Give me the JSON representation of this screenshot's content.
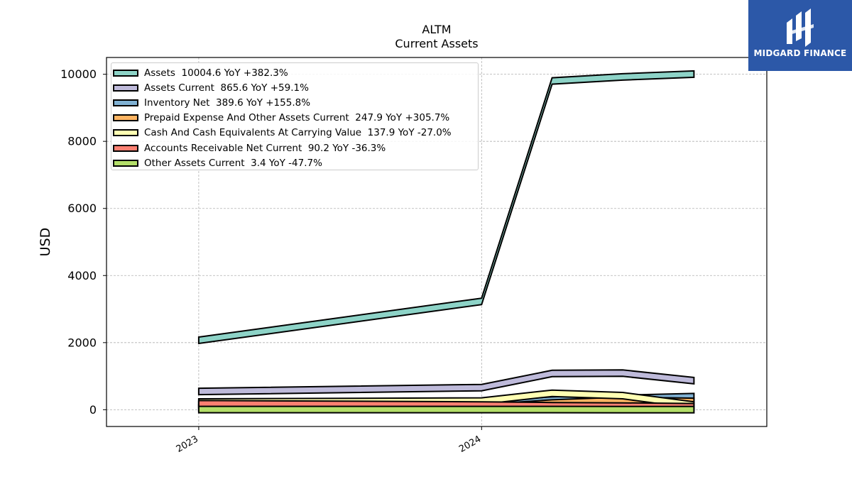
{
  "chart_data": {
    "type": "area",
    "title": "ALTM",
    "subtitle": "Current  Assets",
    "ylabel": "USD",
    "xlabel": "",
    "ylim": [
      -500,
      10500
    ],
    "yticks": [
      0,
      2000,
      4000,
      6000,
      8000,
      10000
    ],
    "xlim": [
      "2022-09-03",
      "2025-01-02"
    ],
    "x_tick_labels": [
      {
        "date": "2022-12-31",
        "label": "2023"
      },
      {
        "date": "2023-12-31",
        "label": "2024"
      }
    ],
    "x": [
      "2022-12-31",
      "2023-12-31",
      "2024-03-31",
      "2024-06-30",
      "2024-09-30"
    ],
    "grid": true,
    "legend_position": "top-left",
    "series": [
      {
        "name": "Assets",
        "legend": "Assets  10004.6 YoY +382.3%",
        "color": "#8dd3c7",
        "values": [
          2070,
          3230,
          9800,
          9920,
          10004.6
        ]
      },
      {
        "name": "Assets Current",
        "legend": "Assets Current  865.6 YoY +59.1%",
        "color": "#bebada",
        "values": [
          545,
          660,
          1080,
          1090,
          865.6
        ]
      },
      {
        "name": "Inventory Net",
        "legend": "Inventory Net  389.6 YoY +155.8%",
        "color": "#80b1d3",
        "values": [
          140,
          152,
          290,
          340,
          389.6
        ]
      },
      {
        "name": "Prepaid Expense And Other Assets Current",
        "legend": "Prepaid Expense And Other Assets Current  247.9 YoY +305.7%",
        "color": "#fdb462",
        "values": [
          60,
          61,
          200,
          280,
          247.9
        ]
      },
      {
        "name": "Cash And Cash Equivalents At Carrying Value",
        "legend": "Cash And Cash Equivalents At Carrying Value  137.9 YoY -27.0%",
        "color": "#ffffb3",
        "values": [
          230,
          260,
          490,
          420,
          137.9
        ]
      },
      {
        "name": "Accounts Receivable Net Current",
        "legend": "Accounts Receivable Net Current  90.2 YoY -36.3%",
        "color": "#fb8072",
        "values": [
          180,
          142,
          120,
          110,
          90.2
        ]
      },
      {
        "name": "Other Assets Current",
        "legend": "Other Assets Current  3.4 YoY -47.7%",
        "color": "#b3de69",
        "values": [
          5,
          6.5,
          5,
          4,
          3.4
        ]
      }
    ]
  },
  "logo": {
    "text": "MIDGARD FINANCE",
    "color": "#2c58a8"
  }
}
